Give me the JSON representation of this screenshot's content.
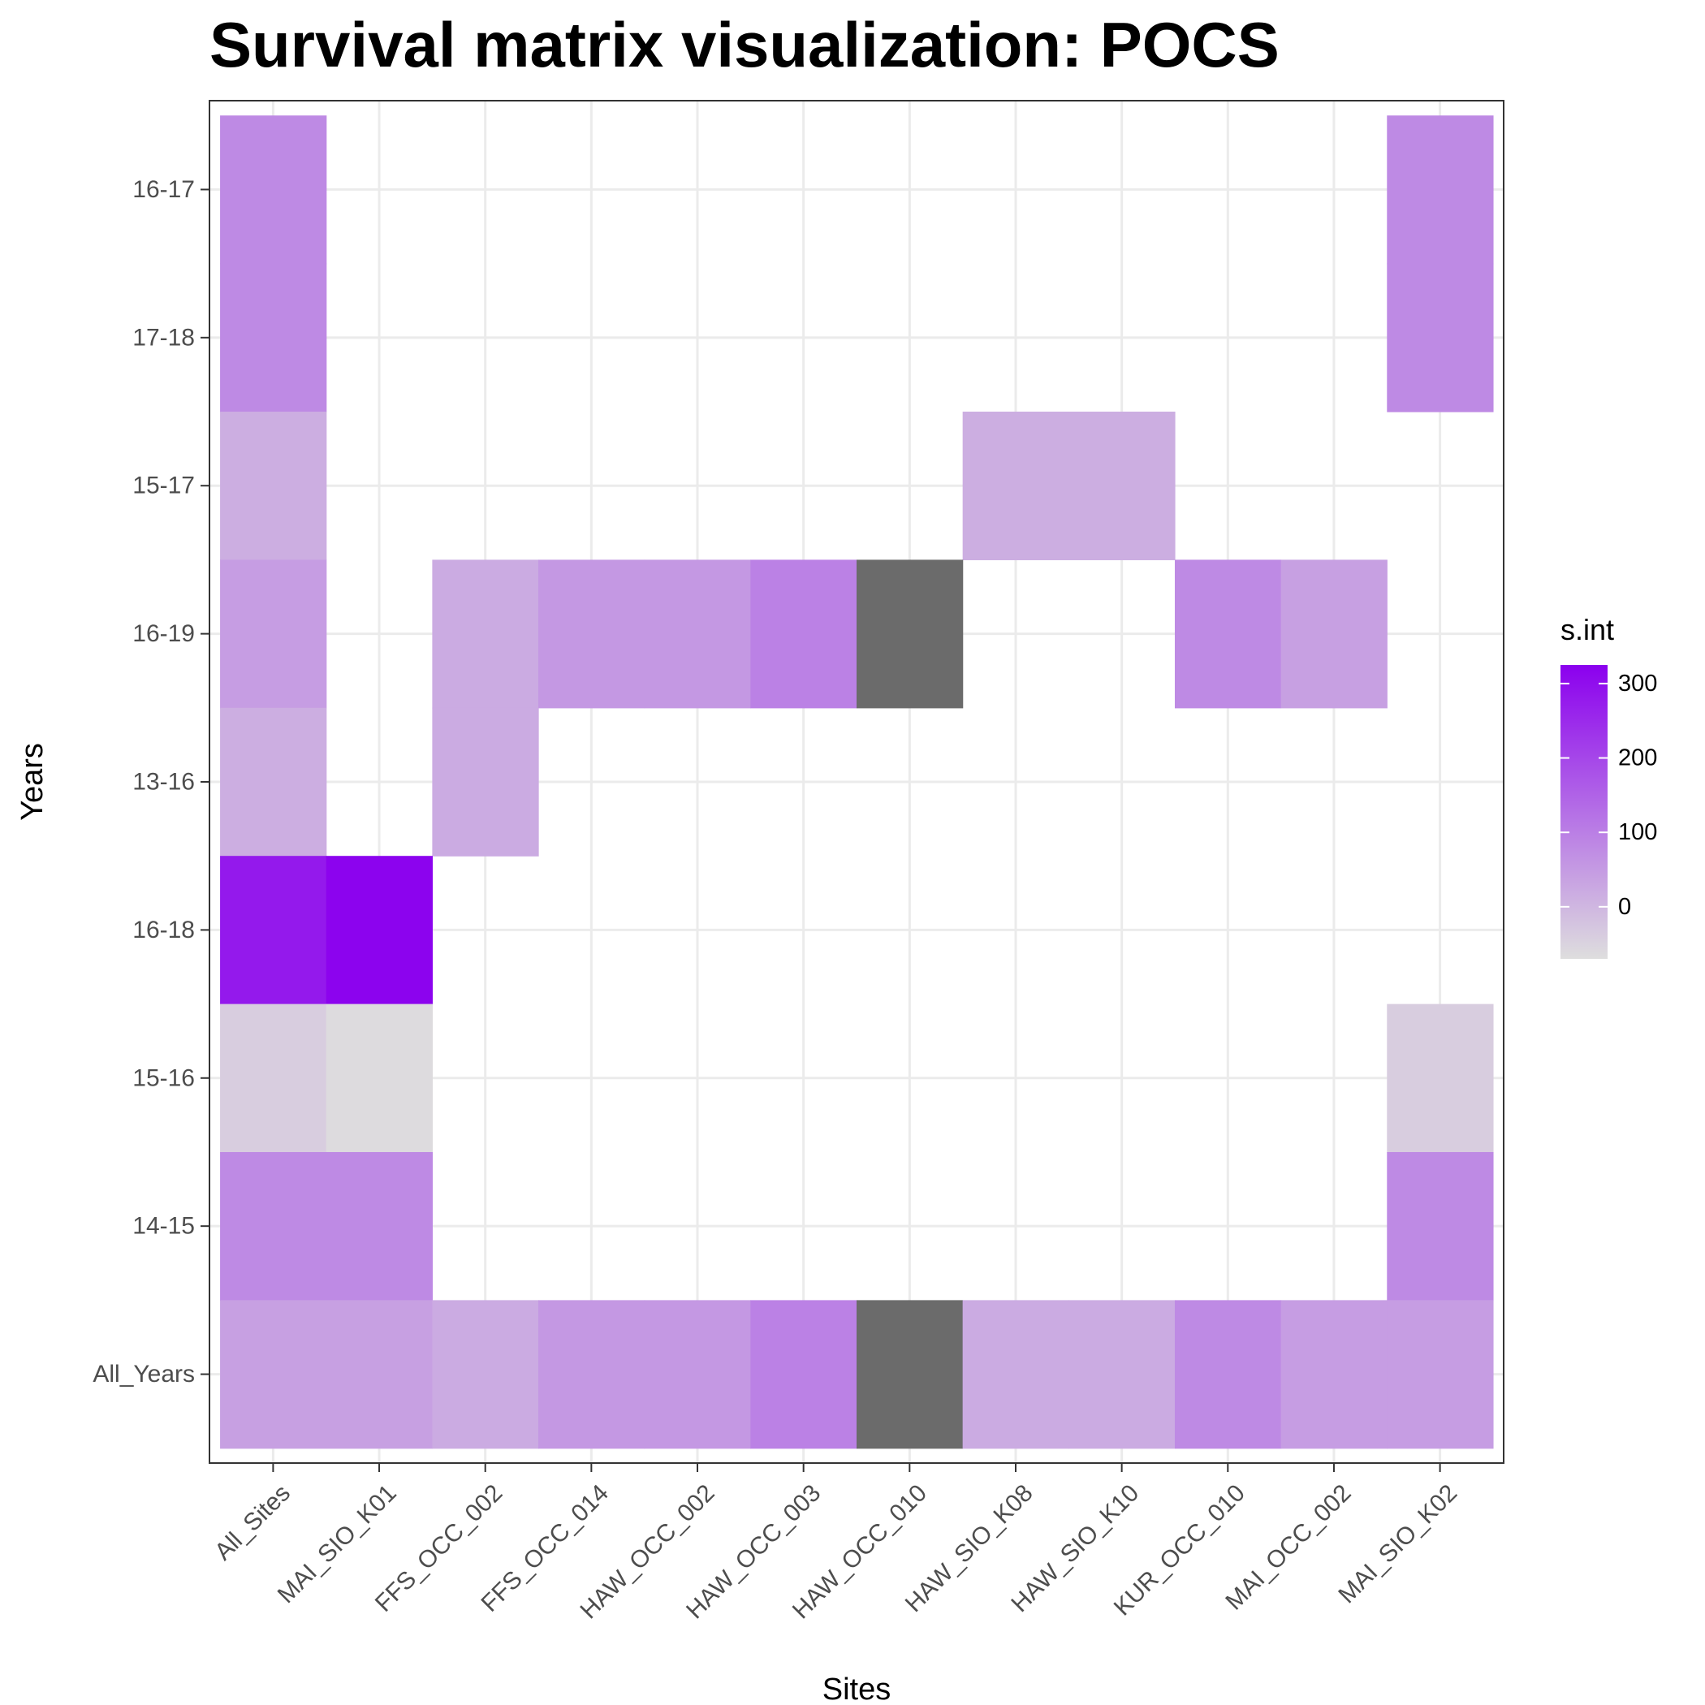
{
  "chart_data": {
    "type": "heatmap",
    "title": "Survival matrix visualization: POCS",
    "xlabel": "Sites",
    "ylabel": "Years",
    "x_categories": [
      "All_Sites",
      "MAI_SIO_K01",
      "FFS_OCC_002",
      "FFS_OCC_014",
      "HAW_OCC_002",
      "HAW_OCC_003",
      "HAW_OCC_010",
      "HAW_SIO_K08",
      "HAW_SIO_K10",
      "KUR_OCC_010",
      "MAI_OCC_002",
      "MAI_SIO_K02"
    ],
    "y_categories": [
      "16-17",
      "17-18",
      "15-17",
      "16-19",
      "13-16",
      "16-18",
      "15-16",
      "14-15",
      "All_Years"
    ],
    "grid": true,
    "legend": {
      "title": "s.int",
      "position": "right",
      "ticks": [
        0,
        100,
        200,
        300
      ],
      "range": [
        -70,
        325
      ],
      "colors": [
        "#dedede",
        "#8b00ee"
      ],
      "na_color": "#6b6b6b"
    },
    "cells": [
      {
        "x": "All_Sites",
        "y": "16-17",
        "value": 80
      },
      {
        "x": "MAI_SIO_K02",
        "y": "16-17",
        "value": 80
      },
      {
        "x": "All_Sites",
        "y": "17-18",
        "value": 80
      },
      {
        "x": "MAI_SIO_K02",
        "y": "17-18",
        "value": 80
      },
      {
        "x": "All_Sites",
        "y": "15-17",
        "value": 15
      },
      {
        "x": "HAW_SIO_K08",
        "y": "15-17",
        "value": 15
      },
      {
        "x": "HAW_SIO_K10",
        "y": "15-17",
        "value": 15
      },
      {
        "x": "All_Sites",
        "y": "16-19",
        "value": 45
      },
      {
        "x": "FFS_OCC_002",
        "y": "16-19",
        "value": 20
      },
      {
        "x": "FFS_OCC_014",
        "y": "16-19",
        "value": 55
      },
      {
        "x": "HAW_OCC_002",
        "y": "16-19",
        "value": 55
      },
      {
        "x": "HAW_OCC_003",
        "y": "16-19",
        "value": 95
      },
      {
        "x": "HAW_OCC_010",
        "y": "16-19",
        "value": null
      },
      {
        "x": "KUR_OCC_010",
        "y": "16-19",
        "value": 80
      },
      {
        "x": "MAI_OCC_002",
        "y": "16-19",
        "value": 40
      },
      {
        "x": "All_Sites",
        "y": "13-16",
        "value": 15
      },
      {
        "x": "FFS_OCC_002",
        "y": "13-16",
        "value": 20
      },
      {
        "x": "All_Sites",
        "y": "16-18",
        "value": 280
      },
      {
        "x": "MAI_SIO_K01",
        "y": "16-18",
        "value": 320
      },
      {
        "x": "All_Sites",
        "y": "15-16",
        "value": -40
      },
      {
        "x": "MAI_SIO_K01",
        "y": "15-16",
        "value": -65
      },
      {
        "x": "MAI_SIO_K02",
        "y": "15-16",
        "value": -40
      },
      {
        "x": "All_Sites",
        "y": "14-15",
        "value": 80
      },
      {
        "x": "MAI_SIO_K01",
        "y": "14-15",
        "value": 80
      },
      {
        "x": "MAI_SIO_K02",
        "y": "14-15",
        "value": 80
      },
      {
        "x": "All_Sites",
        "y": "All_Years",
        "value": 40
      },
      {
        "x": "MAI_SIO_K01",
        "y": "All_Years",
        "value": 40
      },
      {
        "x": "FFS_OCC_002",
        "y": "All_Years",
        "value": 20
      },
      {
        "x": "FFS_OCC_014",
        "y": "All_Years",
        "value": 55
      },
      {
        "x": "HAW_OCC_002",
        "y": "All_Years",
        "value": 55
      },
      {
        "x": "HAW_OCC_003",
        "y": "All_Years",
        "value": 95
      },
      {
        "x": "HAW_OCC_010",
        "y": "All_Years",
        "value": null
      },
      {
        "x": "HAW_SIO_K08",
        "y": "All_Years",
        "value": 20
      },
      {
        "x": "HAW_SIO_K10",
        "y": "All_Years",
        "value": 20
      },
      {
        "x": "KUR_OCC_010",
        "y": "All_Years",
        "value": 80
      },
      {
        "x": "MAI_OCC_002",
        "y": "All_Years",
        "value": 45
      },
      {
        "x": "MAI_SIO_K02",
        "y": "All_Years",
        "value": 45
      }
    ]
  }
}
